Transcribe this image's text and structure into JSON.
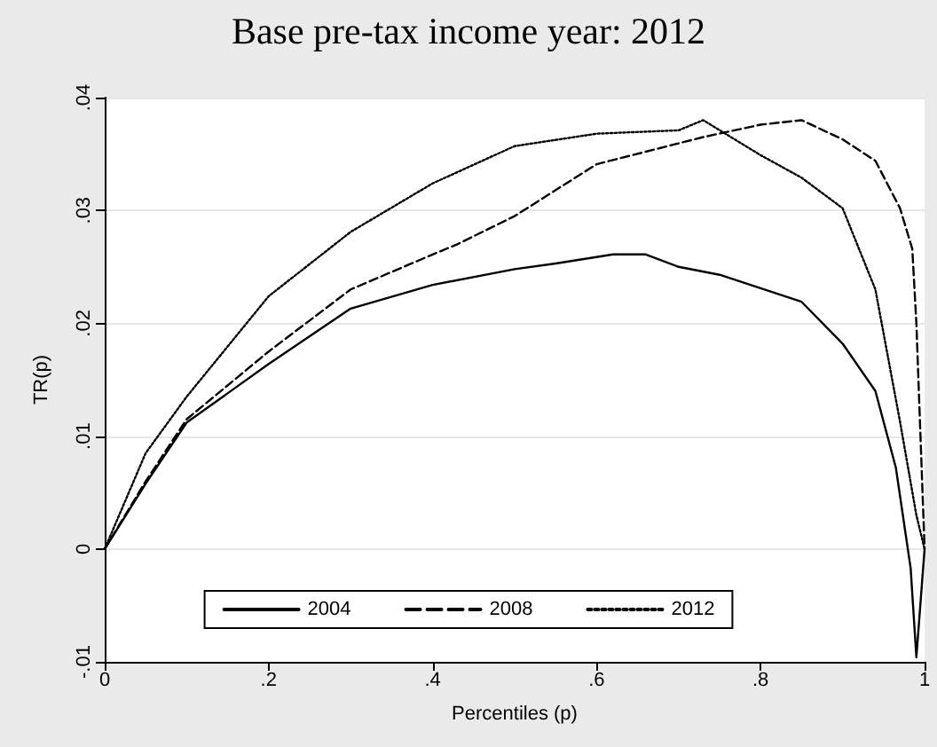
{
  "chart_data": {
    "type": "line",
    "title": "Base pre-tax income year: 2012",
    "xlabel": "Percentiles (p)",
    "ylabel": "TR(p)",
    "xlim": [
      0,
      1
    ],
    "xticks": [
      {
        "value": 0,
        "label": "0"
      },
      {
        "value": 0.2,
        "label": ".2"
      },
      {
        "value": 0.4,
        "label": ".4"
      },
      {
        "value": 0.6,
        "label": ".6"
      },
      {
        "value": 0.8,
        "label": ".8"
      },
      {
        "value": 1,
        "label": "1"
      }
    ],
    "ylim": [
      -0.01,
      0.04
    ],
    "yticks": [
      {
        "value": -0.01,
        "label": "-.01"
      },
      {
        "value": 0,
        "label": "0"
      },
      {
        "value": 0.01,
        "label": ".01"
      },
      {
        "value": 0.02,
        "label": ".02"
      },
      {
        "value": 0.03,
        "label": ".03"
      },
      {
        "value": 0.04,
        "label": ".04"
      }
    ],
    "grid": "y",
    "legend": "bottom",
    "marker": "none",
    "series": [
      {
        "name": "2004",
        "color": "#000000",
        "line_style": "solid",
        "x": [
          0,
          0.05,
          0.1,
          0.2,
          0.3,
          0.4,
          0.5,
          0.55,
          0.62,
          0.66,
          0.7,
          0.75,
          0.8,
          0.85,
          0.9,
          0.94,
          0.965,
          0.983,
          0.99,
          1
        ],
        "values": [
          0,
          0.0058,
          0.0112,
          0.0164,
          0.0213,
          0.0234,
          0.0248,
          0.0253,
          0.0261,
          0.0261,
          0.025,
          0.0243,
          0.0231,
          0.0219,
          0.0182,
          0.014,
          0.0072,
          -0.0017,
          -0.0096,
          0
        ]
      },
      {
        "name": "2008",
        "color": "#000000",
        "line_style": "dashed",
        "x": [
          0,
          0.05,
          0.1,
          0.2,
          0.3,
          0.4,
          0.43,
          0.5,
          0.6,
          0.73,
          0.8,
          0.85,
          0.9,
          0.94,
          0.97,
          0.985,
          0.99,
          1
        ],
        "values": [
          0,
          0.006,
          0.0115,
          0.0175,
          0.023,
          0.0261,
          0.027,
          0.0295,
          0.0341,
          0.0365,
          0.0376,
          0.038,
          0.0363,
          0.0344,
          0.0302,
          0.0266,
          0.02,
          0
        ]
      },
      {
        "name": "2012",
        "color": "#000000",
        "line_style": "dotted",
        "x": [
          0,
          0.05,
          0.1,
          0.2,
          0.3,
          0.4,
          0.5,
          0.6,
          0.7,
          0.73,
          0.8,
          0.85,
          0.9,
          0.94,
          0.97,
          0.99,
          1
        ],
        "values": [
          0,
          0.0085,
          0.0135,
          0.0224,
          0.0281,
          0.0324,
          0.0357,
          0.0368,
          0.0371,
          0.038,
          0.0349,
          0.0329,
          0.0302,
          0.023,
          0.0113,
          0.003,
          0
        ]
      }
    ]
  }
}
